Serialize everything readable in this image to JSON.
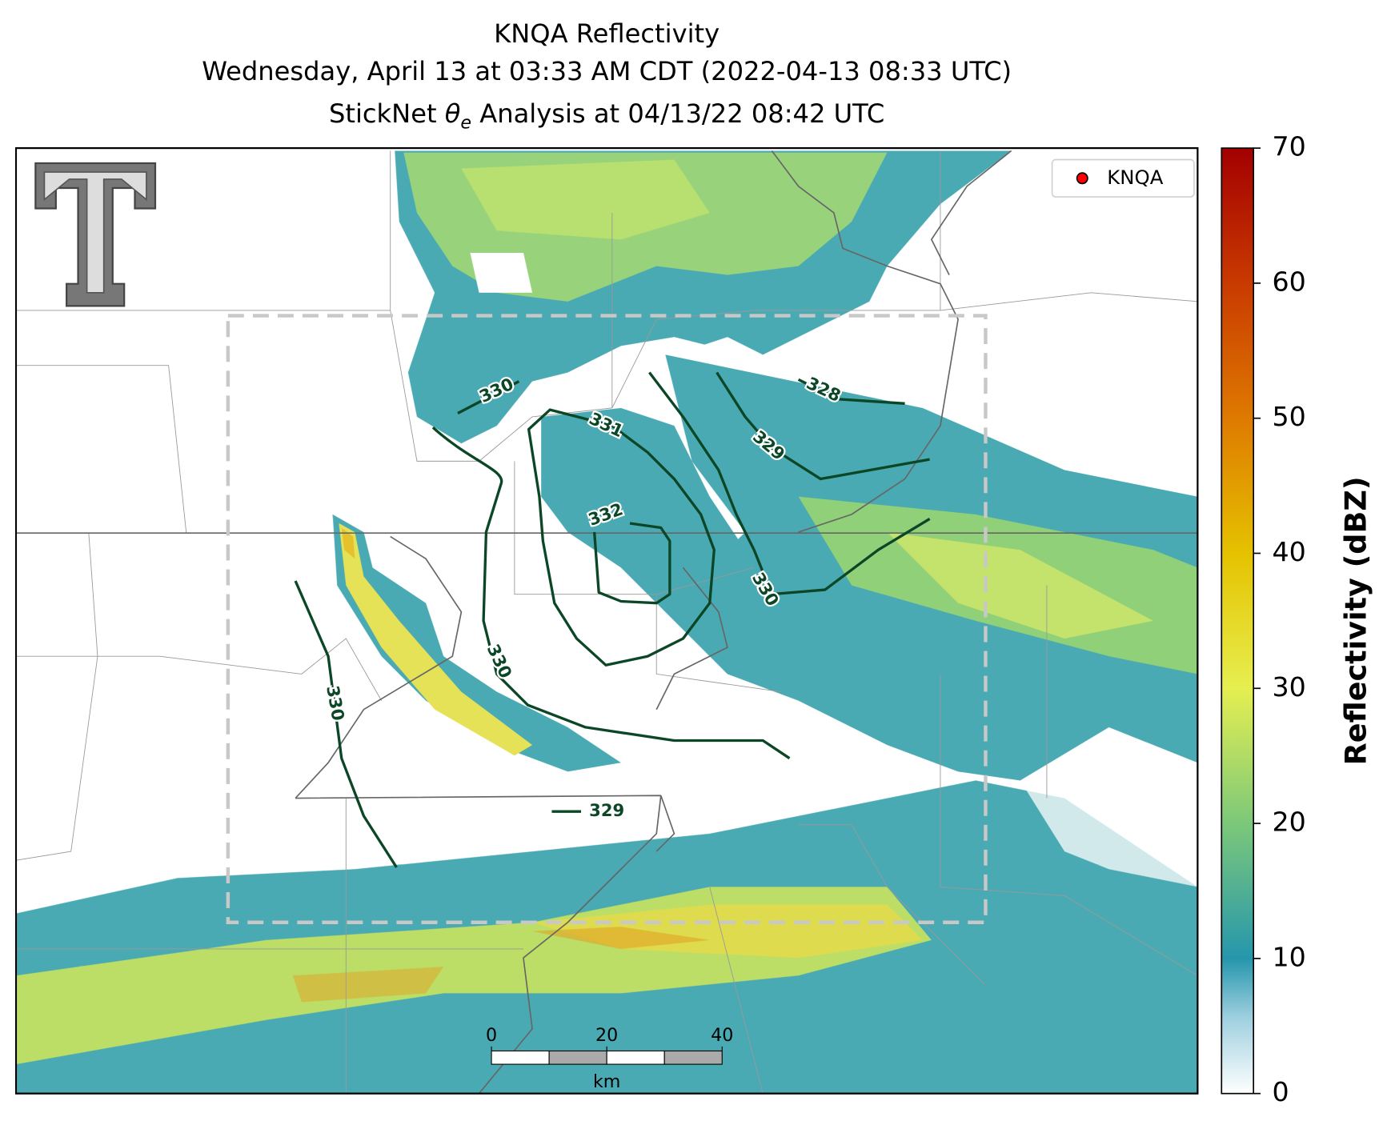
{
  "title": {
    "radar": "KNQA Reflectivity",
    "time": "Wednesday, April 13 at 03:33 AM CDT (2022-04-13 08:33 UTC)",
    "analysis_prefix": "StickNet ",
    "analysis_symbol": "θ",
    "analysis_subscript": "e",
    "analysis_suffix": " Analysis at 04/13/22 08:42 UTC"
  },
  "legend": {
    "label": "KNQA"
  },
  "colorbar": {
    "label": "Reflectivity (dBZ)",
    "lim": [
      0,
      70
    ],
    "ticks": [
      0,
      10,
      20,
      30,
      40,
      50,
      60,
      70
    ]
  },
  "contours": {
    "values": [
      330,
      330,
      331,
      332,
      330,
      329,
      328,
      330,
      329
    ]
  },
  "scale_bar": {
    "ticks": [
      0,
      20,
      40
    ],
    "unit": "km"
  }
}
